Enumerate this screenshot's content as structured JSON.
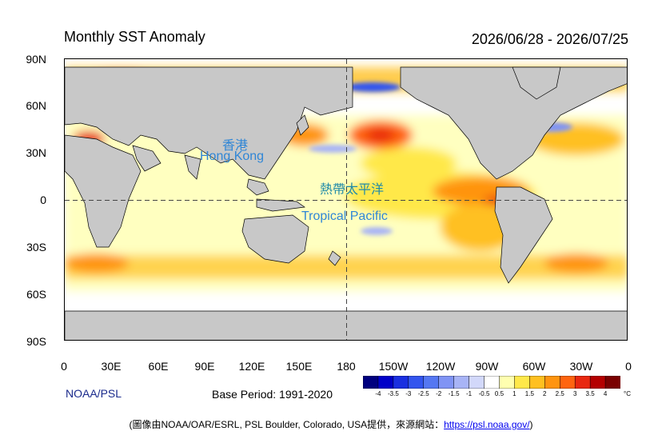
{
  "header": {
    "title": "Monthly SST Anomaly",
    "period": "2026/06/28 - 2026/07/25"
  },
  "axes": {
    "y_ticks": [
      "90N",
      "60N",
      "30N",
      "0",
      "30S",
      "60S",
      "90S"
    ],
    "x_ticks": [
      "0",
      "30E",
      "60E",
      "90E",
      "120E",
      "150E",
      "180",
      "150W",
      "120W",
      "90W",
      "60W",
      "30W",
      "0"
    ]
  },
  "annotations": {
    "hong_kong_zh": "香港",
    "hong_kong_en": "Hong Kong",
    "tropical_pacific_zh": "熱帶太平洋",
    "tropical_pacific_en": "Tropical Pacific"
  },
  "legend": {
    "labels": [
      "-4",
      "-3.5",
      "-3",
      "-2.5",
      "-2",
      "-1.5",
      "-1",
      "-0.5",
      "0.5",
      "1",
      "1.5",
      "2",
      "2.5",
      "3",
      "3.5",
      "4"
    ],
    "unit": "°C",
    "colors": [
      "#00007f",
      "#0000c8",
      "#1a2fe0",
      "#3355ee",
      "#5577f2",
      "#8094f4",
      "#a8b4f6",
      "#d2d8fa",
      "#ffffff",
      "#ffffb0",
      "#ffe84a",
      "#ffc020",
      "#ff9410",
      "#ff6410",
      "#e82810",
      "#b40000",
      "#7a0000"
    ]
  },
  "footer": {
    "source": "NOAA/PSL",
    "base_period": "Base Period: 1991-2020",
    "credit_prefix": "(圖像由NOAA/OAR/ESRL, PSL Boulder, Colorado, USA提供，來源網站：",
    "credit_link": "https://psl.noaa.gov/",
    "credit_suffix": ")"
  },
  "map": {
    "land_color": "#c8c8c8",
    "ocean_base": "#ffffff"
  }
}
